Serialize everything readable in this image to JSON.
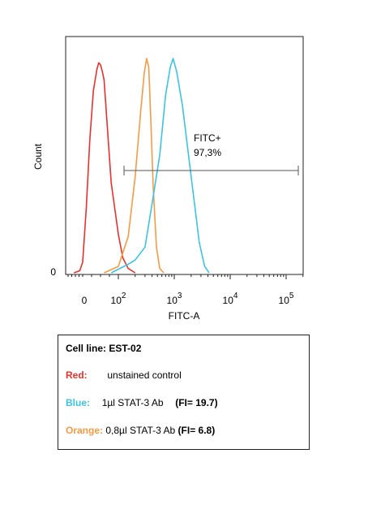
{
  "chart_data": {
    "type": "area",
    "xlabel": "FITC-A",
    "ylabel": "Count",
    "y_zero_label": "0",
    "x_tick_labels": [
      {
        "value": 0,
        "base": "0",
        "exp": ""
      },
      {
        "value": 100,
        "base": "10",
        "exp": "2"
      },
      {
        "value": 1000,
        "base": "10",
        "exp": "3"
      },
      {
        "value": 10000,
        "base": "10",
        "exp": "4"
      },
      {
        "value": 100000,
        "base": "10",
        "exp": "5"
      }
    ],
    "gate": {
      "label": "FITC+",
      "percent": "97,3%",
      "range": [
        80,
        250000
      ]
    },
    "series": [
      {
        "color": "#e8312d",
        "x": [
          -60,
          -20,
          0,
          10,
          20,
          30,
          40,
          45,
          50,
          55,
          60,
          70,
          80,
          100,
          120,
          150,
          200
        ],
        "y": [
          0,
          0.01,
          0.05,
          0.3,
          0.62,
          0.85,
          0.95,
          0.98,
          0.97,
          0.94,
          0.9,
          0.66,
          0.42,
          0.18,
          0.07,
          0.02,
          0
        ]
      },
      {
        "color": "#f59a45",
        "x": [
          60,
          100,
          150,
          200,
          250,
          290,
          320,
          350,
          380,
          420,
          480,
          550,
          650
        ],
        "y": [
          0,
          0.03,
          0.17,
          0.45,
          0.75,
          0.93,
          1.0,
          0.96,
          0.72,
          0.4,
          0.12,
          0.02,
          0
        ]
      },
      {
        "color": "#3cc3e3",
        "x": [
          80,
          150,
          200,
          300,
          400,
          550,
          700,
          850,
          950,
          1100,
          1400,
          2000,
          2800,
          3500,
          4200
        ],
        "y": [
          0,
          0.04,
          0.06,
          0.12,
          0.32,
          0.55,
          0.83,
          0.96,
          1.0,
          0.94,
          0.78,
          0.45,
          0.14,
          0.03,
          0
        ]
      }
    ]
  },
  "legend": {
    "cell_line": "Cell line: EST-02",
    "red_key": "Red:",
    "red_desc": "unstained control",
    "blue_key": "Blue:",
    "blue_desc": "1µl STAT-3 Ab",
    "blue_fi": "(FI= 19.7)",
    "orange_key": "Orange:",
    "orange_desc": "0,8µl STAT-3 Ab",
    "orange_fi": "(FI= 6.8)",
    "colors": {
      "red": "#e8312d",
      "blue": "#3cc3e3",
      "orange": "#f59a45"
    }
  }
}
